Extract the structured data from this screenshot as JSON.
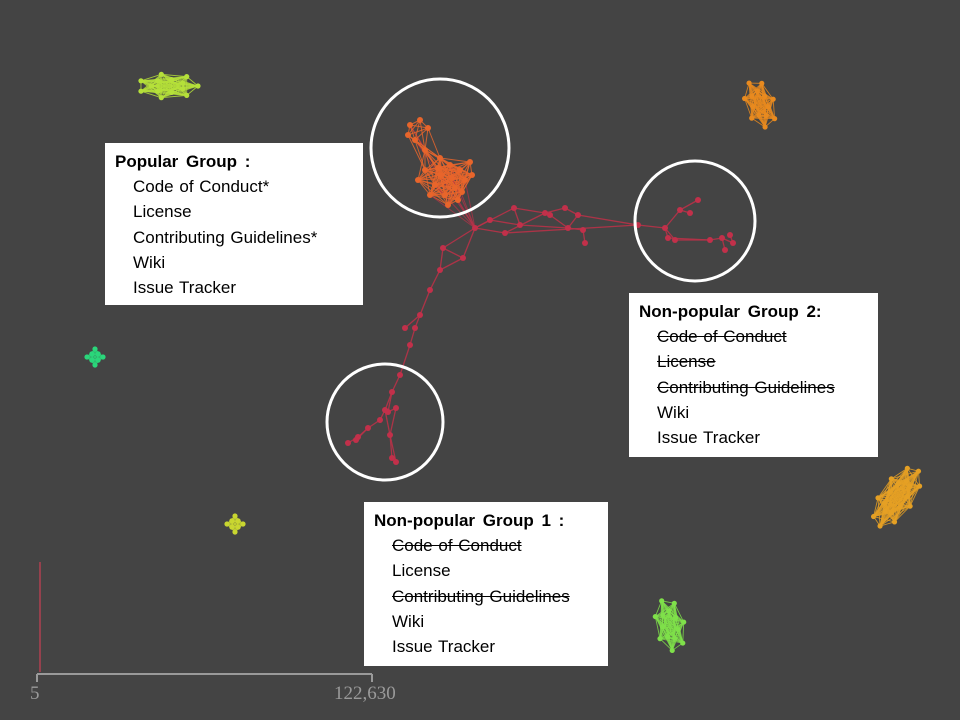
{
  "popular_group": {
    "title": "Popular Group :",
    "items": [
      {
        "label": "Code of Conduct*",
        "struck": false
      },
      {
        "label": "License",
        "struck": false
      },
      {
        "label": "Contributing Guidelines*",
        "struck": false
      },
      {
        "label": "Wiki",
        "struck": false
      },
      {
        "label": "Issue Tracker",
        "struck": false
      }
    ]
  },
  "nonpopular_group_2": {
    "title": "Non-popular Group 2:",
    "items": [
      {
        "label": "Code of Conduct",
        "struck": true
      },
      {
        "label": "License",
        "struck": true
      },
      {
        "label": "Contributing Guidelines",
        "struck": true
      },
      {
        "label": "Wiki",
        "struck": false
      },
      {
        "label": "Issue Tracker",
        "struck": false
      }
    ]
  },
  "nonpopular_group_1": {
    "title": "Non-popular Group 1 :",
    "items": [
      {
        "label": "Code of Conduct",
        "struck": true
      },
      {
        "label": "License",
        "struck": false
      },
      {
        "label": "Contributing Guidelines",
        "struck": true
      },
      {
        "label": "Wiki",
        "struck": false
      },
      {
        "label": "Issue Tracker",
        "struck": false
      }
    ]
  },
  "scale": {
    "min_label": "5",
    "max_label": "122,630"
  },
  "colors": {
    "background": "#444444",
    "network_edge": "#b83248",
    "network_node": "#c2304a",
    "popular_cluster": "#e8652b",
    "highlight_circle": "#ffffff",
    "cluster_yellow_green": "#b5e03a",
    "cluster_orange": "#e88a1f",
    "cluster_gold": "#e5a024",
    "cluster_light_green": "#7fe04a",
    "cluster_teal": "#2ad67a",
    "cluster_yellow": "#c9d630",
    "axis": "#9a9a9a",
    "axis_scale_bar": "#b04050"
  }
}
